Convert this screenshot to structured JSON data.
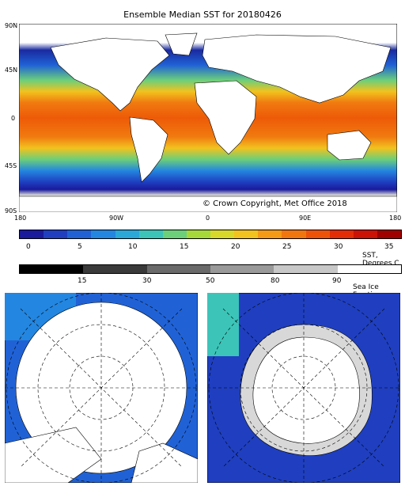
{
  "title": "Ensemble Median SST for 20180426",
  "copyright": "© Crown Copyright, Met Office 2018",
  "lat_labels": [
    "90N",
    "45N",
    "0",
    "45S",
    "90S"
  ],
  "lon_labels": [
    "180",
    "90W",
    "0",
    "90E",
    "180"
  ],
  "sst_bar": {
    "label": "SST, Degrees C",
    "ticks": [
      "0",
      "5",
      "10",
      "15",
      "20",
      "25",
      "30",
      "35"
    ],
    "colors": [
      "#1a1a9c",
      "#1f3fc0",
      "#2062d6",
      "#2386e0",
      "#2aa8d8",
      "#3cc4b8",
      "#6ccf7a",
      "#a6d83a",
      "#d8d82a",
      "#f2c21e",
      "#f59a14",
      "#f2760e",
      "#ee5208",
      "#e42c06",
      "#cc1204",
      "#a00000"
    ]
  },
  "ice_bar": {
    "label": "Sea Ice Fraction",
    "ticks": [
      "15",
      "30",
      "50",
      "80",
      "90"
    ],
    "colors": [
      "#000000",
      "#3a3a3a",
      "#6a6a6a",
      "#9a9a9a",
      "#c8c8c8",
      "#ffffff"
    ]
  },
  "colors": {
    "land": "#ffffff",
    "ocean_warm": "#f06010",
    "ocean_cold": "#1a2aa0",
    "ice": "#d8d8d8"
  }
}
